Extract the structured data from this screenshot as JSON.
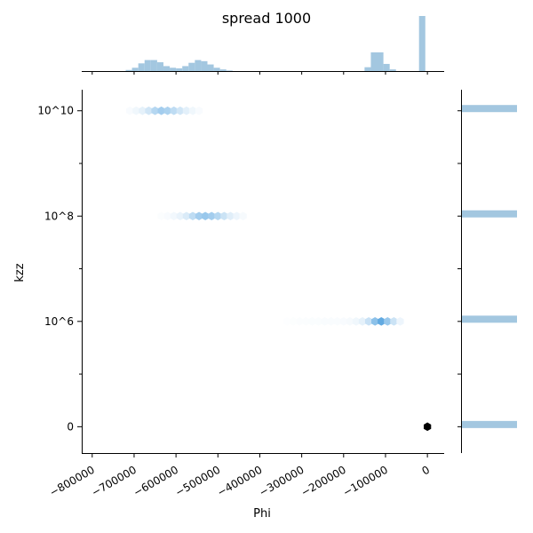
{
  "chart_data": {
    "type": "hexbin",
    "title": "spread 1000",
    "xlabel": "Phi",
    "ylabel": "kzz",
    "xlim": [
      -825000,
      40000
    ],
    "ylim": [
      -0.25,
      3.2
    ],
    "x_ticks": [
      -800000,
      -700000,
      -600000,
      -500000,
      -400000,
      -300000,
      -200000,
      -100000,
      0
    ],
    "x_tick_labels": [
      "−800000",
      "−700000",
      "−600000",
      "−500000",
      "−400000",
      "−300000",
      "−200000",
      "−100000",
      "0"
    ],
    "y_ticks": [
      0,
      1,
      2,
      3
    ],
    "y_tick_labels": [
      "0",
      "10^6",
      "10^8",
      "10^10"
    ],
    "y_minor_ticks": [
      0.5,
      1.5,
      2.5
    ],
    "hex_color": "#5aabde",
    "clusters": [
      {
        "y": 3,
        "points": [
          {
            "x": -710000,
            "d": 0.04
          },
          {
            "x": -695000,
            "d": 0.08
          },
          {
            "x": -680000,
            "d": 0.14
          },
          {
            "x": -665000,
            "d": 0.25
          },
          {
            "x": -650000,
            "d": 0.4
          },
          {
            "x": -635000,
            "d": 0.5
          },
          {
            "x": -620000,
            "d": 0.45
          },
          {
            "x": -605000,
            "d": 0.35
          },
          {
            "x": -590000,
            "d": 0.25
          },
          {
            "x": -575000,
            "d": 0.15
          },
          {
            "x": -560000,
            "d": 0.08
          },
          {
            "x": -545000,
            "d": 0.04
          }
        ]
      },
      {
        "y": 2,
        "points": [
          {
            "x": -635000,
            "d": 0.02
          },
          {
            "x": -620000,
            "d": 0.04
          },
          {
            "x": -605000,
            "d": 0.07
          },
          {
            "x": -590000,
            "d": 0.12
          },
          {
            "x": -575000,
            "d": 0.2
          },
          {
            "x": -560000,
            "d": 0.35
          },
          {
            "x": -545000,
            "d": 0.5
          },
          {
            "x": -530000,
            "d": 0.55
          },
          {
            "x": -515000,
            "d": 0.5
          },
          {
            "x": -500000,
            "d": 0.4
          },
          {
            "x": -485000,
            "d": 0.28
          },
          {
            "x": -470000,
            "d": 0.17
          },
          {
            "x": -455000,
            "d": 0.1
          },
          {
            "x": -440000,
            "d": 0.05
          }
        ]
      },
      {
        "y": 1,
        "points": [
          {
            "x": -335000,
            "d": 0.01
          },
          {
            "x": -320000,
            "d": 0.015
          },
          {
            "x": -305000,
            "d": 0.02
          },
          {
            "x": -290000,
            "d": 0.02
          },
          {
            "x": -275000,
            "d": 0.025
          },
          {
            "x": -260000,
            "d": 0.025
          },
          {
            "x": -245000,
            "d": 0.03
          },
          {
            "x": -230000,
            "d": 0.03
          },
          {
            "x": -215000,
            "d": 0.035
          },
          {
            "x": -200000,
            "d": 0.04
          },
          {
            "x": -185000,
            "d": 0.05
          },
          {
            "x": -170000,
            "d": 0.08
          },
          {
            "x": -155000,
            "d": 0.14
          },
          {
            "x": -140000,
            "d": 0.3
          },
          {
            "x": -125000,
            "d": 0.62
          },
          {
            "x": -110000,
            "d": 0.85
          },
          {
            "x": -95000,
            "d": 0.55
          },
          {
            "x": -80000,
            "d": 0.28
          },
          {
            "x": -65000,
            "d": 0.1
          }
        ]
      },
      {
        "y": 0,
        "points": [
          {
            "x": 0,
            "d": 1.0
          }
        ]
      }
    ],
    "marginal_x": {
      "color": "#a3c7e0",
      "bins": [
        {
          "x0": -720000,
          "x1": -705000,
          "h": 0.02
        },
        {
          "x0": -705000,
          "x1": -690000,
          "h": 0.06
        },
        {
          "x0": -690000,
          "x1": -675000,
          "h": 0.14
        },
        {
          "x0": -675000,
          "x1": -660000,
          "h": 0.2
        },
        {
          "x0": -660000,
          "x1": -645000,
          "h": 0.2
        },
        {
          "x0": -645000,
          "x1": -630000,
          "h": 0.16
        },
        {
          "x0": -630000,
          "x1": -615000,
          "h": 0.09
        },
        {
          "x0": -615000,
          "x1": -600000,
          "h": 0.06
        },
        {
          "x0": -600000,
          "x1": -585000,
          "h": 0.05
        },
        {
          "x0": -585000,
          "x1": -570000,
          "h": 0.09
        },
        {
          "x0": -570000,
          "x1": -555000,
          "h": 0.15
        },
        {
          "x0": -555000,
          "x1": -540000,
          "h": 0.2
        },
        {
          "x0": -540000,
          "x1": -525000,
          "h": 0.18
        },
        {
          "x0": -525000,
          "x1": -510000,
          "h": 0.12
        },
        {
          "x0": -510000,
          "x1": -495000,
          "h": 0.06
        },
        {
          "x0": -495000,
          "x1": -480000,
          "h": 0.03
        },
        {
          "x0": -480000,
          "x1": -465000,
          "h": 0.01
        },
        {
          "x0": -150000,
          "x1": -135000,
          "h": 0.07
        },
        {
          "x0": -135000,
          "x1": -105000,
          "h": 0.34
        },
        {
          "x0": -105000,
          "x1": -90000,
          "h": 0.13
        },
        {
          "x0": -90000,
          "x1": -75000,
          "h": 0.03
        },
        {
          "x0": -20000,
          "x1": -5000,
          "h": 1.0
        }
      ]
    },
    "marginal_y": {
      "color": "#a3c7e0",
      "bars": [
        {
          "y": 3,
          "len": 1.0
        },
        {
          "y": 2,
          "len": 1.0
        },
        {
          "y": 1,
          "len": 1.0
        },
        {
          "y": 0,
          "len": 1.0
        }
      ]
    }
  }
}
